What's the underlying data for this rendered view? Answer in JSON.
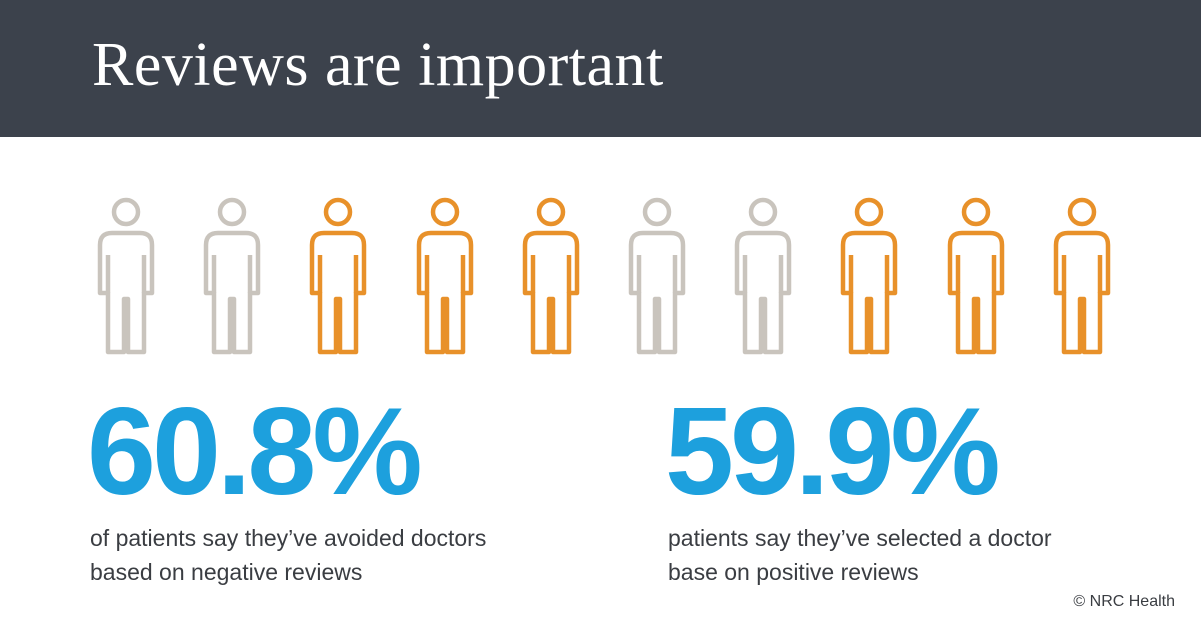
{
  "header": {
    "title": "Reviews are important"
  },
  "colors": {
    "header_bg": "#3c424c",
    "accent": "#1da0dd",
    "figure_orange": "#e8912a",
    "figure_gray": "#c9c4bd"
  },
  "figures": [
    {
      "icon": "person-icon",
      "color": "gray"
    },
    {
      "icon": "person-icon",
      "color": "gray"
    },
    {
      "icon": "person-icon",
      "color": "orange"
    },
    {
      "icon": "person-icon",
      "color": "orange"
    },
    {
      "icon": "person-icon",
      "color": "orange"
    },
    {
      "icon": "person-icon",
      "color": "gray"
    },
    {
      "icon": "person-icon",
      "color": "gray"
    },
    {
      "icon": "person-icon",
      "color": "orange"
    },
    {
      "icon": "person-icon",
      "color": "orange"
    },
    {
      "icon": "person-icon",
      "color": "orange"
    }
  ],
  "stats": [
    {
      "value": "60.8%",
      "lines": [
        "of patients say they’ve avoided doctors",
        "based on negative reviews"
      ]
    },
    {
      "value": "59.9%",
      "lines": [
        "patients say they’ve selected a doctor",
        "base on positive reviews"
      ]
    }
  ],
  "credit": "© NRC Health"
}
